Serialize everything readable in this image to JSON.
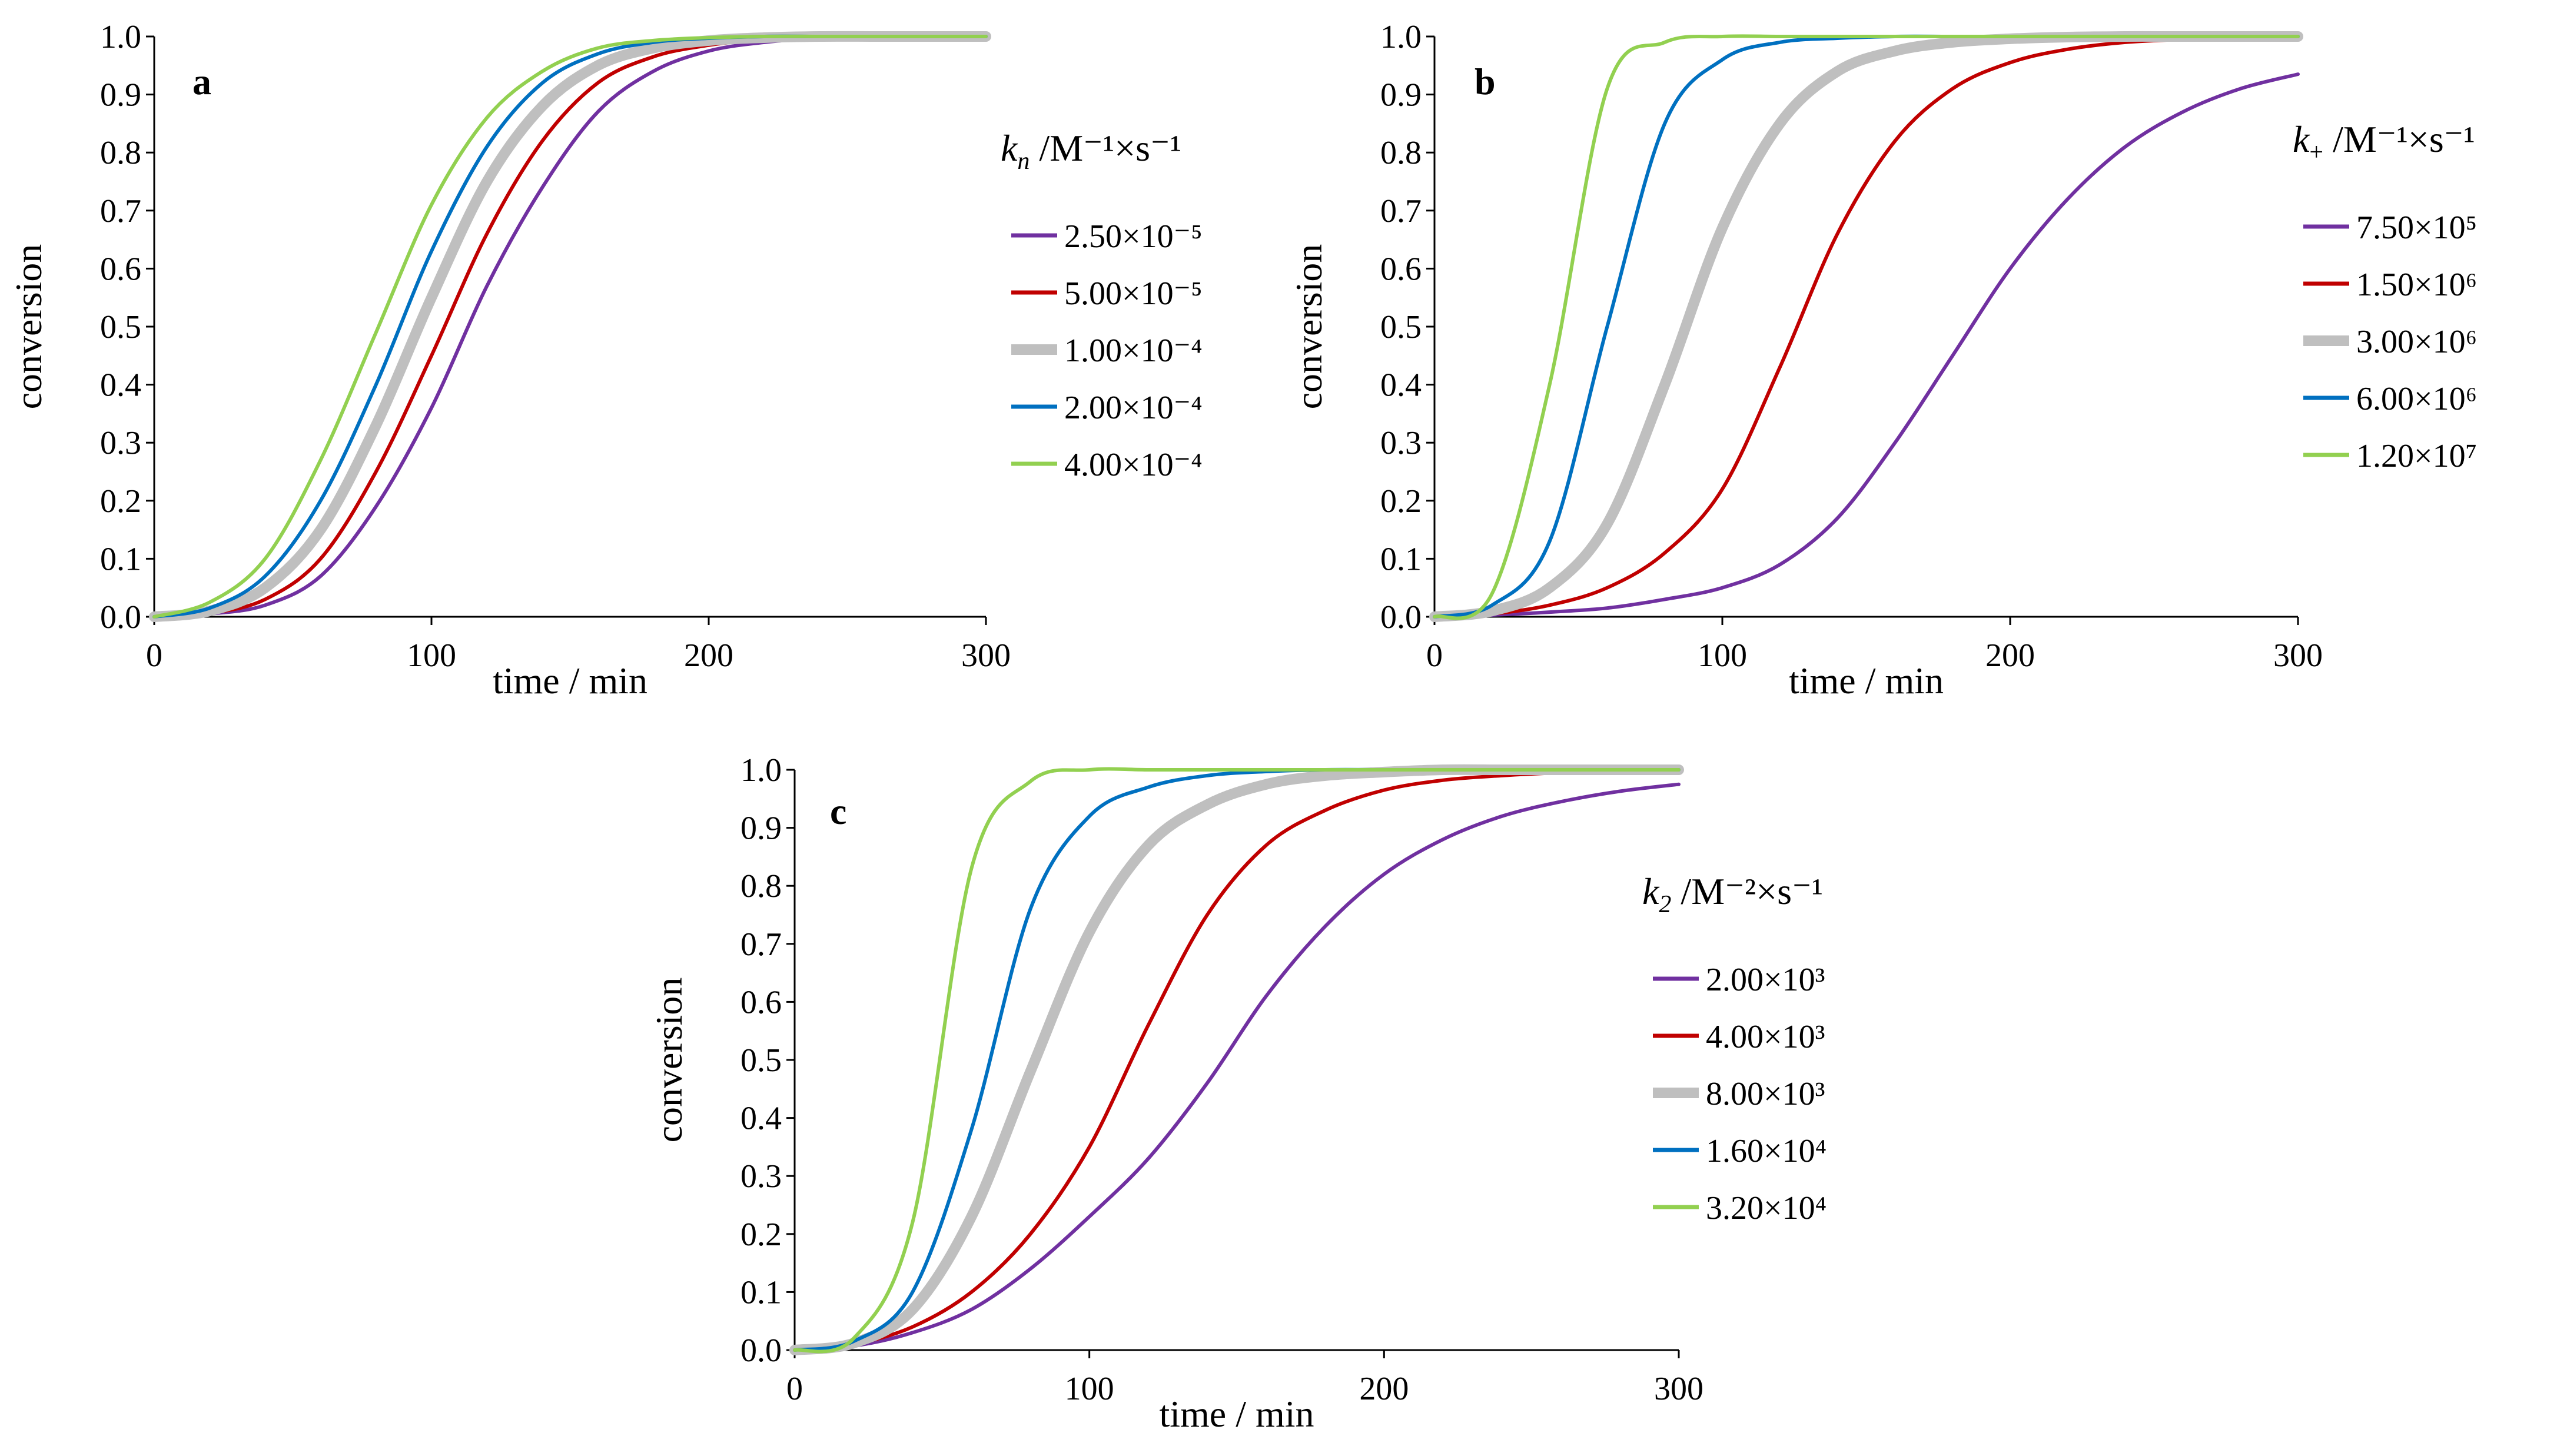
{
  "chart_data": [
    {
      "type": "line",
      "panel": "a",
      "xlabel": "time / min",
      "ylabel": "conversion",
      "xlim": [
        0,
        300
      ],
      "ylim": [
        0,
        1.0
      ],
      "x_ticks": [
        "0",
        "100",
        "200",
        "300"
      ],
      "y_ticks": [
        "0.0",
        "0.1",
        "0.2",
        "0.3",
        "0.4",
        "0.5",
        "0.6",
        "0.7",
        "0.8",
        "0.9",
        "1.0"
      ],
      "legend_title": {
        "sym": "k",
        "sub": "n",
        "unit": "/M⁻¹×s⁻¹"
      },
      "legend_position": "right",
      "x": [
        0,
        20,
        40,
        60,
        80,
        100,
        120,
        140,
        160,
        180,
        200,
        220,
        240,
        260,
        280,
        300
      ],
      "series": [
        {
          "name": "2.50×10⁻⁵",
          "color": "#7030A0",
          "width": "normal",
          "values": [
            0.0,
            0.005,
            0.02,
            0.07,
            0.19,
            0.36,
            0.57,
            0.74,
            0.87,
            0.94,
            0.975,
            0.99,
            0.997,
            0.999,
            1.0,
            1.0
          ]
        },
        {
          "name": "5.00×10⁻⁵",
          "color": "#C00000",
          "width": "normal",
          "values": [
            0.0,
            0.006,
            0.03,
            0.1,
            0.25,
            0.45,
            0.66,
            0.82,
            0.92,
            0.965,
            0.985,
            0.995,
            0.998,
            1.0,
            1.0,
            1.0
          ]
        },
        {
          "name": "1.00×10⁻⁴",
          "color": "#BFBFBF",
          "width": "thick",
          "values": [
            0.0,
            0.01,
            0.05,
            0.15,
            0.33,
            0.55,
            0.75,
            0.88,
            0.95,
            0.98,
            0.993,
            0.998,
            1.0,
            1.0,
            1.0,
            1.0
          ]
        },
        {
          "name": "2.00×10⁻⁴",
          "color": "#0070C0",
          "width": "normal",
          "values": [
            0.0,
            0.015,
            0.07,
            0.2,
            0.4,
            0.63,
            0.81,
            0.92,
            0.97,
            0.99,
            0.997,
            1.0,
            1.0,
            1.0,
            1.0,
            1.0
          ]
        },
        {
          "name": "4.00×10⁻⁴",
          "color": "#92D050",
          "width": "normal",
          "values": [
            0.0,
            0.025,
            0.1,
            0.27,
            0.49,
            0.71,
            0.86,
            0.94,
            0.98,
            0.993,
            0.998,
            1.0,
            1.0,
            1.0,
            1.0,
            1.0
          ]
        }
      ]
    },
    {
      "type": "line",
      "panel": "b",
      "xlabel": "time / min",
      "ylabel": "conversion",
      "xlim": [
        0,
        300
      ],
      "ylim": [
        0,
        1.0
      ],
      "x_ticks": [
        "0",
        "100",
        "200",
        "300"
      ],
      "y_ticks": [
        "0.0",
        "0.1",
        "0.2",
        "0.3",
        "0.4",
        "0.5",
        "0.6",
        "0.7",
        "0.8",
        "0.9",
        "1.0"
      ],
      "legend_title": {
        "sym": "k",
        "sub": "+",
        "unit": "/M⁻¹×s⁻¹"
      },
      "legend_position": "right",
      "x": [
        0,
        20,
        40,
        60,
        80,
        100,
        120,
        140,
        160,
        180,
        200,
        220,
        240,
        260,
        280,
        300
      ],
      "series": [
        {
          "name": "7.50×10⁵",
          "color": "#7030A0",
          "width": "normal",
          "values": [
            0.0,
            0.003,
            0.008,
            0.015,
            0.03,
            0.05,
            0.09,
            0.17,
            0.3,
            0.45,
            0.6,
            0.72,
            0.81,
            0.87,
            0.91,
            0.935
          ]
        },
        {
          "name": "1.50×10⁶",
          "color": "#C00000",
          "width": "normal",
          "values": [
            0.0,
            0.005,
            0.02,
            0.05,
            0.11,
            0.22,
            0.43,
            0.66,
            0.82,
            0.91,
            0.955,
            0.978,
            0.99,
            0.995,
            0.998,
            1.0
          ]
        },
        {
          "name": "3.00×10⁶",
          "color": "#BFBFBF",
          "width": "thick",
          "values": [
            0.0,
            0.01,
            0.05,
            0.16,
            0.4,
            0.67,
            0.85,
            0.94,
            0.975,
            0.99,
            0.996,
            0.999,
            1.0,
            1.0,
            1.0,
            1.0
          ]
        },
        {
          "name": "6.00×10⁶",
          "color": "#0070C0",
          "width": "normal",
          "values": [
            0.0,
            0.02,
            0.13,
            0.5,
            0.85,
            0.96,
            0.99,
            0.997,
            1.0,
            1.0,
            1.0,
            1.0,
            1.0,
            1.0,
            1.0,
            1.0
          ]
        },
        {
          "name": "1.20×10⁷",
          "color": "#92D050",
          "width": "normal",
          "values": [
            0.0,
            0.04,
            0.4,
            0.91,
            0.99,
            1.0,
            1.0,
            1.0,
            1.0,
            1.0,
            1.0,
            1.0,
            1.0,
            1.0,
            1.0,
            1.0
          ]
        }
      ]
    },
    {
      "type": "line",
      "panel": "c",
      "xlabel": "time / min",
      "ylabel": "conversion",
      "xlim": [
        0,
        300
      ],
      "ylim": [
        0,
        1.0
      ],
      "x_ticks": [
        "0",
        "100",
        "200",
        "300"
      ],
      "y_ticks": [
        "0.0",
        "0.1",
        "0.2",
        "0.3",
        "0.4",
        "0.5",
        "0.6",
        "0.7",
        "0.8",
        "0.9",
        "1.0"
      ],
      "legend_title": {
        "sym": "k",
        "sub": "2",
        "unit": "/M⁻²×s⁻¹"
      },
      "legend_position": "right",
      "x": [
        0,
        20,
        40,
        60,
        80,
        100,
        120,
        140,
        160,
        180,
        200,
        220,
        240,
        260,
        280,
        300
      ],
      "series": [
        {
          "name": "2.00×10³",
          "color": "#7030A0",
          "width": "normal",
          "values": [
            0.0,
            0.007,
            0.03,
            0.07,
            0.14,
            0.23,
            0.33,
            0.46,
            0.61,
            0.73,
            0.82,
            0.88,
            0.92,
            0.945,
            0.963,
            0.975
          ]
        },
        {
          "name": "4.00×10³",
          "color": "#C00000",
          "width": "normal",
          "values": [
            0.0,
            0.01,
            0.04,
            0.1,
            0.2,
            0.35,
            0.56,
            0.75,
            0.87,
            0.93,
            0.965,
            0.982,
            0.99,
            0.995,
            0.998,
            1.0
          ]
        },
        {
          "name": "8.00×10³",
          "color": "#BFBFBF",
          "width": "thick",
          "values": [
            0.0,
            0.012,
            0.07,
            0.23,
            0.48,
            0.72,
            0.87,
            0.94,
            0.975,
            0.99,
            0.996,
            1.0,
            1.0,
            1.0,
            1.0,
            1.0
          ]
        },
        {
          "name": "1.60×10⁴",
          "color": "#0070C0",
          "width": "normal",
          "values": [
            0.0,
            0.015,
            0.1,
            0.38,
            0.76,
            0.92,
            0.97,
            0.99,
            0.997,
            1.0,
            1.0,
            1.0,
            1.0,
            1.0,
            1.0,
            1.0
          ]
        },
        {
          "name": "3.20×10⁴",
          "color": "#92D050",
          "width": "normal",
          "values": [
            0.0,
            0.02,
            0.22,
            0.83,
            0.98,
            1.0,
            1.0,
            1.0,
            1.0,
            1.0,
            1.0,
            1.0,
            1.0,
            1.0,
            1.0,
            1.0
          ]
        }
      ]
    }
  ]
}
